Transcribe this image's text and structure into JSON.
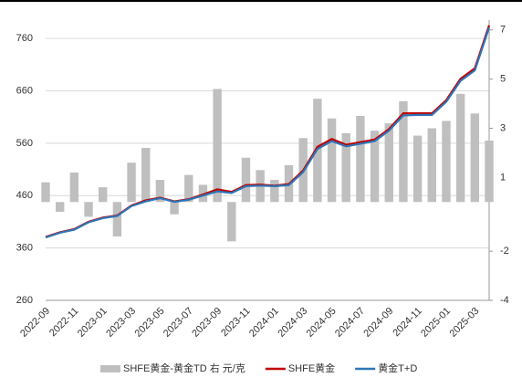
{
  "chart_data": {
    "type": "line",
    "x": [
      "2022-09",
      "2022-10",
      "2022-11",
      "2022-12",
      "2023-01",
      "2023-02",
      "2023-03",
      "2023-04",
      "2023-05",
      "2023-06",
      "2023-07",
      "2023-08",
      "2023-09",
      "2023-10",
      "2023-11",
      "2023-12",
      "2024-01",
      "2024-02",
      "2024-03",
      "2024-04",
      "2024-05",
      "2024-06",
      "2024-07",
      "2024-08",
      "2024-09",
      "2024-10",
      "2024-11",
      "2024-12",
      "2025-01",
      "2025-02",
      "2025-03",
      "2025-04"
    ],
    "xtick_every": 2,
    "series": [
      {
        "name": "SHFE黄金-黄金TD 右 元/克",
        "type": "bar",
        "axis": "y2",
        "color": "#bfbfbf",
        "values": [
          0.8,
          -0.4,
          1.2,
          -0.6,
          0.6,
          -1.4,
          1.6,
          2.2,
          0.9,
          -0.5,
          1.1,
          0.7,
          4.6,
          -1.6,
          1.8,
          1.3,
          0.9,
          1.5,
          2.6,
          4.2,
          3.4,
          2.8,
          3.5,
          2.9,
          3.2,
          4.1,
          2.7,
          3.0,
          3.3,
          4.4,
          3.6,
          2.5
        ]
      },
      {
        "name": "SHFE黄金",
        "color": "#c00000",
        "values": [
          381,
          390,
          396,
          410,
          418,
          422,
          441,
          451,
          456,
          449,
          453,
          462,
          472,
          467,
          480,
          481,
          479,
          482,
          508,
          553,
          568,
          557,
          562,
          567,
          587,
          617,
          617,
          617,
          642,
          683,
          703,
          785
        ]
      },
      {
        "name": "黄金T+D",
        "color": "#2e75b6",
        "values": [
          380,
          389,
          395,
          409,
          417,
          421,
          440,
          449,
          455,
          448,
          452,
          460,
          468,
          465,
          478,
          479,
          478,
          480,
          505,
          549,
          564,
          554,
          559,
          564,
          584,
          613,
          614,
          614,
          639,
          679,
          699,
          781
        ]
      }
    ],
    "ylim": [
      260,
      795
    ],
    "yticks": [
      260,
      360,
      460,
      560,
      660,
      760
    ],
    "y2lim": [
      -4,
      7.4
    ],
    "y2ticks": [
      -4,
      -2,
      1,
      3,
      5,
      7
    ],
    "legend": "bottom"
  }
}
